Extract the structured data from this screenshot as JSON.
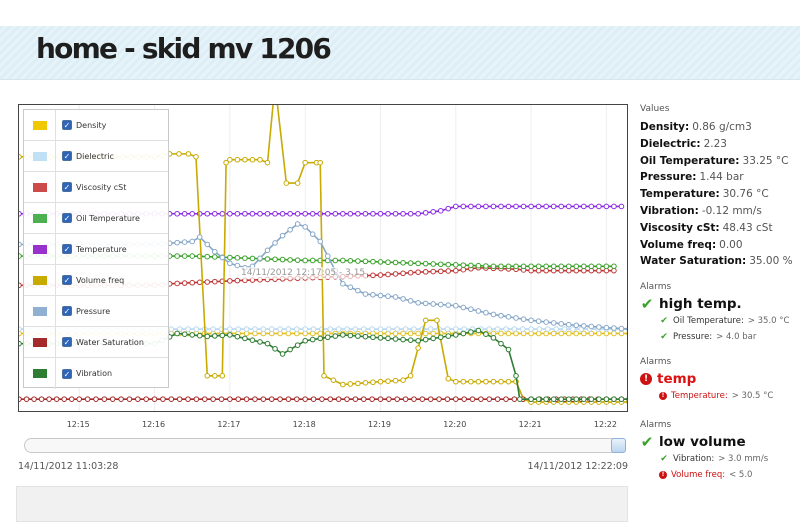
{
  "page": {
    "title": "home - skid mv 1206"
  },
  "chart_data": {
    "type": "line",
    "x_ticks": [
      "12:15",
      "12:16",
      "12:17",
      "12:18",
      "12:19",
      "12:20",
      "12:21",
      "12:22"
    ],
    "x_tick_minutes": [
      15,
      16,
      17,
      18,
      19,
      20,
      21,
      22
    ],
    "xlim_minutes": [
      14.2,
      22.3
    ],
    "ylim": [
      0,
      100
    ],
    "grid": true,
    "legend_position": "top-left",
    "series": [
      {
        "name": "Density",
        "color": "#e0c020",
        "points": [
          [
            14.2,
            24.5
          ],
          [
            15,
            24.5
          ],
          [
            16,
            24.5
          ],
          [
            17,
            24.5
          ],
          [
            18,
            24.5
          ],
          [
            18.5,
            24.5
          ],
          [
            19,
            24.5
          ],
          [
            19.5,
            24.5
          ],
          [
            20,
            24.5
          ],
          [
            20.5,
            24.5
          ],
          [
            21,
            24.5
          ],
          [
            21.5,
            24.5
          ],
          [
            22,
            24.5
          ],
          [
            22.3,
            24.5
          ]
        ]
      },
      {
        "name": "Dielectric",
        "color": "#b8d8f0",
        "points": [
          [
            14.2,
            26
          ],
          [
            15,
            26
          ],
          [
            16,
            26
          ],
          [
            17,
            26
          ],
          [
            18,
            26
          ],
          [
            19,
            26
          ],
          [
            20,
            26
          ],
          [
            21,
            26
          ],
          [
            22,
            26
          ],
          [
            22.3,
            26
          ]
        ]
      },
      {
        "name": "Viscosity cSt",
        "color": "#c03838",
        "points": [
          [
            14.2,
            41
          ],
          [
            15,
            41
          ],
          [
            16,
            41
          ],
          [
            16.2,
            41.5
          ],
          [
            16.6,
            42
          ],
          [
            17,
            42.5
          ],
          [
            17.5,
            43
          ],
          [
            18,
            43.5
          ],
          [
            18.5,
            44
          ],
          [
            19,
            44.5
          ],
          [
            19.5,
            45.5
          ],
          [
            20,
            46
          ],
          [
            20.3,
            47
          ],
          [
            20.8,
            46.5
          ],
          [
            21,
            46
          ],
          [
            21.5,
            46
          ],
          [
            22,
            46
          ],
          [
            22.1,
            46
          ]
        ]
      },
      {
        "name": "Oil Temperature",
        "color": "#3aa12a",
        "points": [
          [
            14.2,
            51
          ],
          [
            15,
            51
          ],
          [
            16,
            51
          ],
          [
            16.5,
            51
          ],
          [
            17,
            50.5
          ],
          [
            17.5,
            50
          ],
          [
            18,
            49.5
          ],
          [
            18.5,
            49.5
          ],
          [
            19,
            49
          ],
          [
            19.5,
            48.5
          ],
          [
            20,
            48
          ],
          [
            20.5,
            47.5
          ],
          [
            21,
            47.5
          ],
          [
            21.5,
            47.5
          ],
          [
            22,
            47.5
          ],
          [
            22.1,
            47.5
          ]
        ]
      },
      {
        "name": "Temperature",
        "color": "#8a2be2",
        "points": [
          [
            14.2,
            65.5
          ],
          [
            15,
            65.5
          ],
          [
            16,
            65.5
          ],
          [
            16.5,
            65.5
          ],
          [
            17,
            65.5
          ],
          [
            17.5,
            65.5
          ],
          [
            18,
            65.5
          ],
          [
            18.5,
            65.5
          ],
          [
            19,
            65.5
          ],
          [
            19.5,
            65.5
          ],
          [
            19.8,
            66.5
          ],
          [
            20,
            68
          ],
          [
            20.5,
            68
          ],
          [
            21,
            68
          ],
          [
            21.5,
            68
          ],
          [
            22,
            68
          ],
          [
            22.2,
            68
          ]
        ]
      },
      {
        "name": "Volume freq",
        "color": "#c8aa00",
        "points": [
          [
            14.2,
            85
          ],
          [
            16,
            85
          ],
          [
            16.2,
            86
          ],
          [
            16.45,
            86
          ],
          [
            16.55,
            85
          ],
          [
            16.7,
            10
          ],
          [
            16.9,
            10
          ],
          [
            16.95,
            83
          ],
          [
            17,
            84
          ],
          [
            17.2,
            84
          ],
          [
            17.4,
            84
          ],
          [
            17.5,
            83
          ],
          [
            17.6,
            110
          ],
          [
            17.75,
            76
          ],
          [
            17.9,
            76
          ],
          [
            18,
            83
          ],
          [
            18.15,
            83
          ],
          [
            18.2,
            83
          ],
          [
            18.25,
            10
          ],
          [
            18.5,
            7
          ],
          [
            19,
            8
          ],
          [
            19.3,
            8.5
          ],
          [
            19.4,
            10
          ],
          [
            19.6,
            29
          ],
          [
            19.75,
            29
          ],
          [
            19.9,
            9
          ],
          [
            20,
            8
          ],
          [
            20.5,
            8
          ],
          [
            20.8,
            8
          ],
          [
            20.9,
            2
          ],
          [
            21,
            1
          ],
          [
            21.5,
            1
          ],
          [
            22,
            1
          ],
          [
            22.3,
            1
          ]
        ]
      },
      {
        "name": "Pressure",
        "color": "#87a7c8",
        "points": [
          [
            14.2,
            55
          ],
          [
            15,
            55
          ],
          [
            16,
            55
          ],
          [
            16.5,
            56
          ],
          [
            16.6,
            57.5
          ],
          [
            16.8,
            52.5
          ],
          [
            17,
            48.5
          ],
          [
            17.2,
            47
          ],
          [
            17.3,
            47.5
          ],
          [
            17.5,
            53
          ],
          [
            17.7,
            58
          ],
          [
            17.9,
            62
          ],
          [
            18,
            61
          ],
          [
            18.2,
            56
          ],
          [
            18.4,
            46
          ],
          [
            18.5,
            41.5
          ],
          [
            18.8,
            38
          ],
          [
            19.2,
            37
          ],
          [
            19.5,
            35
          ],
          [
            20,
            34
          ],
          [
            20.5,
            31
          ],
          [
            21,
            29
          ],
          [
            21.5,
            27.5
          ],
          [
            22,
            26.5
          ],
          [
            22.3,
            26
          ]
        ]
      },
      {
        "name": "Water Saturation",
        "color": "#a52a2a",
        "points": [
          [
            14.2,
            2
          ],
          [
            15,
            2
          ],
          [
            16,
            2
          ],
          [
            17,
            2
          ],
          [
            18,
            2
          ],
          [
            19,
            2
          ],
          [
            20,
            2
          ],
          [
            21,
            2
          ],
          [
            22,
            2
          ],
          [
            22.3,
            2
          ]
        ]
      },
      {
        "name": "Vibration",
        "color": "#2e7d32",
        "points": [
          [
            14.2,
            21
          ],
          [
            15,
            21
          ],
          [
            16,
            21
          ],
          [
            16.3,
            24.5
          ],
          [
            16.7,
            23.5
          ],
          [
            17,
            24
          ],
          [
            17.5,
            21
          ],
          [
            17.7,
            17.5
          ],
          [
            18,
            22
          ],
          [
            18.5,
            24
          ],
          [
            19,
            23
          ],
          [
            19.5,
            22
          ],
          [
            20,
            24
          ],
          [
            20.3,
            25.5
          ],
          [
            20.5,
            23
          ],
          [
            20.7,
            19
          ],
          [
            20.8,
            10
          ],
          [
            20.85,
            2
          ],
          [
            21,
            2
          ],
          [
            21.5,
            2
          ],
          [
            22,
            2
          ],
          [
            22.3,
            2
          ]
        ]
      }
    ],
    "tooltip": "14/11/2012 12:17:05 - 3.15"
  },
  "legend": {
    "items": [
      {
        "label": "Density",
        "color": "#f0c800"
      },
      {
        "label": "Dielectric",
        "color": "#bfe0f5"
      },
      {
        "label": "Viscosity cSt",
        "color": "#cc4a4a"
      },
      {
        "label": "Oil Temperature",
        "color": "#4caf50"
      },
      {
        "label": "Temperature",
        "color": "#9932cc"
      },
      {
        "label": "Volume freq",
        "color": "#c8aa00"
      },
      {
        "label": "Pressure",
        "color": "#8fb0d0"
      },
      {
        "label": "Water Saturation",
        "color": "#a52a2a"
      },
      {
        "label": "Vibration",
        "color": "#2e7d32"
      }
    ],
    "check_glyph": "✓"
  },
  "slider": {
    "start_label": "14/11/2012 11:03:28",
    "end_label": "14/11/2012 12:22:09",
    "position": 1.0
  },
  "values": {
    "heading": "Values",
    "items": [
      {
        "label": "Density:",
        "value": "0.86 g/cm3"
      },
      {
        "label": "Dielectric:",
        "value": "2.23"
      },
      {
        "label": "Oil Temperature:",
        "value": "33.25 °C"
      },
      {
        "label": "Pressure:",
        "value": "1.44 bar"
      },
      {
        "label": "Temperature:",
        "value": "30.76 °C"
      },
      {
        "label": "Vibration:",
        "value": "-0.12 mm/s"
      },
      {
        "label": "Viscosity cSt:",
        "value": "48.43 cSt"
      },
      {
        "label": "Volume freq:",
        "value": "0.00"
      },
      {
        "label": "Water Saturation:",
        "value": "35.00 %"
      }
    ]
  },
  "alarms": [
    {
      "heading": "Alarms",
      "name": "high temp.",
      "status": "ok",
      "conditions": [
        {
          "name": "Oil Temperature:",
          "threshold": "> 35.0 °C",
          "status": "ok"
        },
        {
          "name": "Pressure:",
          "threshold": "> 4.0 bar",
          "status": "ok"
        }
      ]
    },
    {
      "heading": "Alarms",
      "name": "temp",
      "status": "bad",
      "conditions": [
        {
          "name": "Temperature:",
          "threshold": "> 30.5 °C",
          "status": "bad"
        }
      ]
    },
    {
      "heading": "Alarms",
      "name": "low volume",
      "status": "ok",
      "conditions": [
        {
          "name": "Vibration:",
          "threshold": "> 3.0 mm/s",
          "status": "ok"
        },
        {
          "name": "Volume freq:",
          "threshold": "< 5.0",
          "status": "bad"
        }
      ]
    }
  ],
  "icons": {
    "ok": "✔",
    "bad": "!"
  }
}
